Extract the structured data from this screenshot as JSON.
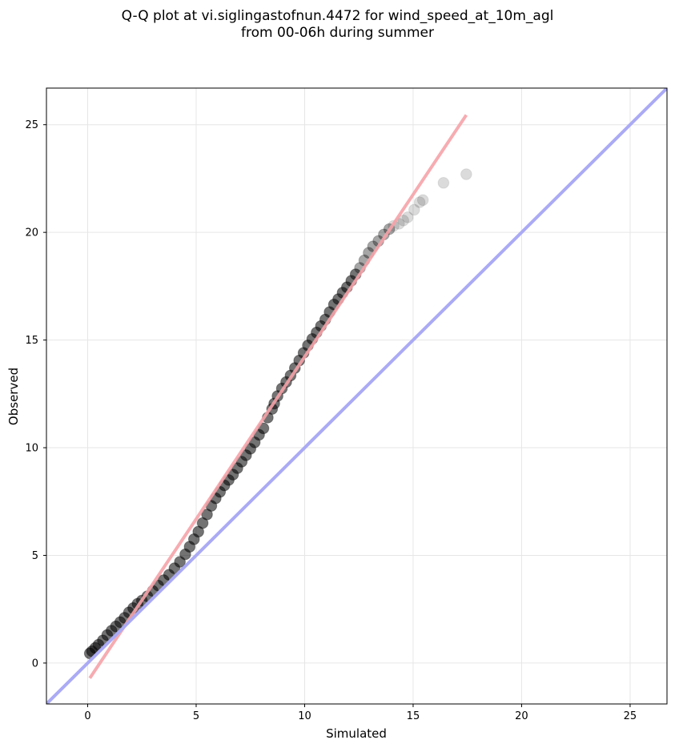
{
  "chart_data": {
    "type": "scatter",
    "title_line1": "Q-Q plot at vi.siglingastofnun.4472 for wind_speed_at_10m_agl",
    "title_line2": "from 00-06h during summer",
    "xlabel": "Simulated",
    "ylabel": "Observed",
    "xlim": [
      -1.9,
      26.7
    ],
    "ylim": [
      -1.9,
      26.7
    ],
    "xticks": [
      0,
      5,
      10,
      15,
      20,
      25
    ],
    "yticks": [
      0,
      5,
      10,
      15,
      20,
      25
    ],
    "grid": true,
    "marker_color": "#000000",
    "identity_line": {
      "name": "1:1 line",
      "color": "#aaaaf5",
      "x": [
        -1.9,
        26.7
      ],
      "y": [
        -1.9,
        26.7
      ]
    },
    "fit_line": {
      "name": "fit",
      "color": "#f5a3a8",
      "x": [
        0.1,
        17.45
      ],
      "y": [
        -0.7,
        25.45
      ]
    },
    "series": [
      {
        "name": "quantiles",
        "x": [
          0.1,
          0.2,
          0.35,
          0.5,
          0.7,
          0.9,
          1.1,
          1.3,
          1.5,
          1.7,
          1.9,
          2.1,
          2.3,
          2.5,
          2.75,
          3.0,
          3.25,
          3.5,
          3.75,
          4.0,
          4.25,
          4.5,
          4.7,
          4.9,
          5.1,
          5.3,
          5.5,
          5.7,
          5.9,
          6.1,
          6.3,
          6.5,
          6.7,
          6.9,
          7.1,
          7.3,
          7.5,
          7.7,
          7.9,
          8.1,
          8.3,
          8.5,
          8.6,
          8.75,
          8.95,
          9.15,
          9.35,
          9.55,
          9.75,
          9.95,
          10.15,
          10.35,
          10.55,
          10.75,
          10.95,
          11.15,
          11.35,
          11.55,
          11.75,
          11.95,
          12.15,
          12.35,
          12.55,
          12.75,
          12.95,
          13.15,
          13.4,
          13.65,
          13.9,
          14.1,
          14.35,
          14.55,
          14.75,
          15.05,
          15.3,
          15.45,
          16.4,
          17.45
        ],
        "y": [
          0.45,
          0.55,
          0.7,
          0.85,
          1.05,
          1.3,
          1.5,
          1.7,
          1.9,
          2.1,
          2.35,
          2.55,
          2.75,
          2.9,
          3.1,
          3.35,
          3.6,
          3.85,
          4.1,
          4.4,
          4.7,
          5.05,
          5.4,
          5.75,
          6.1,
          6.5,
          6.9,
          7.3,
          7.65,
          7.95,
          8.25,
          8.5,
          8.75,
          9.05,
          9.35,
          9.65,
          9.95,
          10.25,
          10.6,
          10.9,
          11.4,
          11.8,
          12.05,
          12.4,
          12.75,
          13.05,
          13.35,
          13.7,
          14.05,
          14.4,
          14.75,
          15.05,
          15.35,
          15.65,
          15.95,
          16.3,
          16.65,
          16.9,
          17.2,
          17.45,
          17.75,
          18.05,
          18.35,
          18.7,
          19.05,
          19.35,
          19.6,
          19.9,
          20.15,
          20.3,
          20.4,
          20.55,
          20.7,
          21.05,
          21.4,
          21.5,
          22.3,
          22.7
        ]
      }
    ]
  }
}
